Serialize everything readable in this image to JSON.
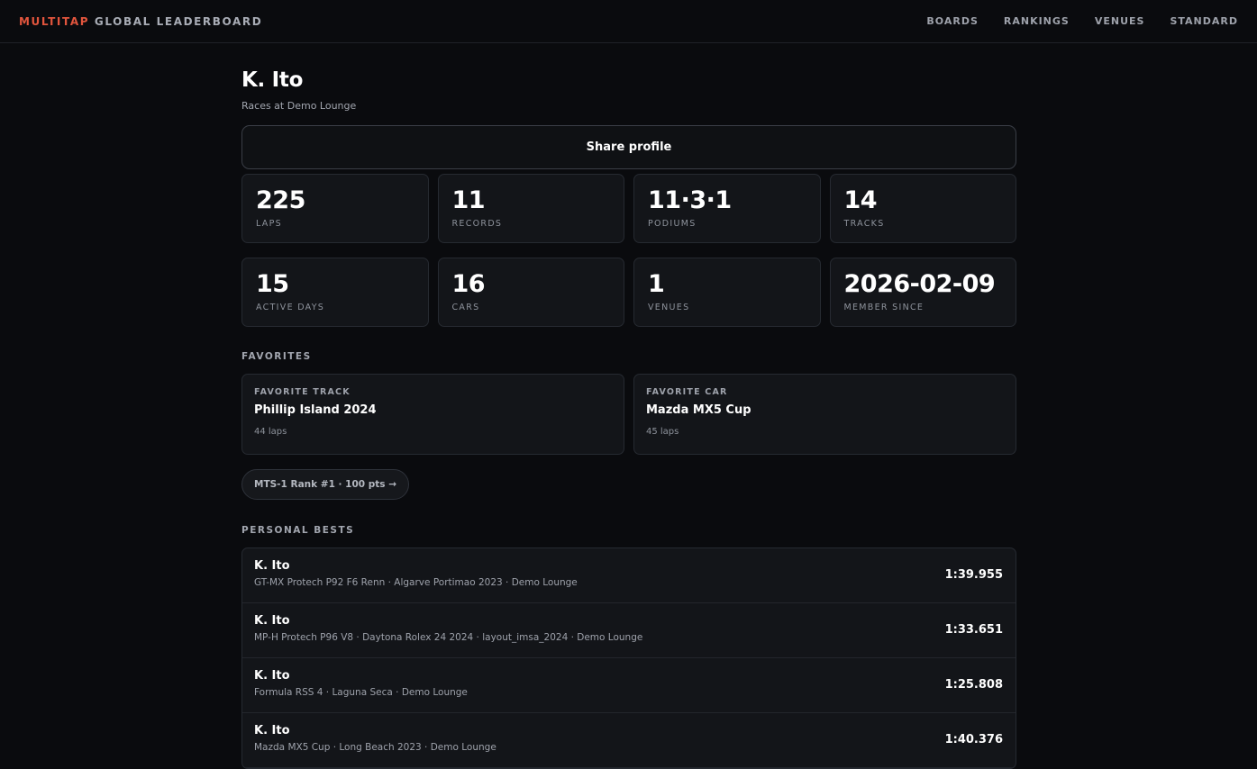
{
  "header": {
    "brand_accent": "MULTITAP",
    "brand_rest": " GLOBAL LEADERBOARD",
    "nav": [
      "BOARDS",
      "RANKINGS",
      "VENUES",
      "STANDARD"
    ]
  },
  "profile": {
    "name": "K. Ito",
    "subtitle": "Races at Demo Lounge",
    "share_label": "Share profile"
  },
  "stats": [
    {
      "value": "225",
      "label": "LAPS"
    },
    {
      "value": "11",
      "label": "RECORDS"
    },
    {
      "value": "11·3·1",
      "label": "PODIUMS"
    },
    {
      "value": "14",
      "label": "TRACKS"
    },
    {
      "value": "15",
      "label": "ACTIVE DAYS"
    },
    {
      "value": "16",
      "label": "CARS"
    },
    {
      "value": "1",
      "label": "VENUES"
    },
    {
      "value": "2026-02-09",
      "label": "MEMBER SINCE"
    }
  ],
  "favorites": {
    "title": "FAVORITES",
    "track": {
      "label": "FAVORITE TRACK",
      "value": "Phillip Island 2024",
      "sub": "44 laps"
    },
    "car": {
      "label": "FAVORITE CAR",
      "value": "Mazda MX5 Cup",
      "sub": "45 laps"
    }
  },
  "rank_pill": "MTS-1 Rank #1 · 100 pts →",
  "personal_bests": {
    "title": "PERSONAL BESTS",
    "rows": [
      {
        "driver": "K. Ito",
        "meta": "GT-MX Protech P92 F6 Renn · Algarve Portimao 2023 · Demo Lounge",
        "time": "1:39.955"
      },
      {
        "driver": "K. Ito",
        "meta": "MP-H Protech P96 V8 · Daytona Rolex 24 2024 · layout_imsa_2024 · Demo Lounge",
        "time": "1:33.651"
      },
      {
        "driver": "K. Ito",
        "meta": "Formula RSS 4 · Laguna Seca · Demo Lounge",
        "time": "1:25.808"
      },
      {
        "driver": "K. Ito",
        "meta": "Mazda MX5 Cup · Long Beach 2023 · Demo Lounge",
        "time": "1:40.376"
      }
    ]
  },
  "colors": {
    "background": "#0a0b0e",
    "card": "#131519",
    "brand_accent": "#e2553d"
  }
}
